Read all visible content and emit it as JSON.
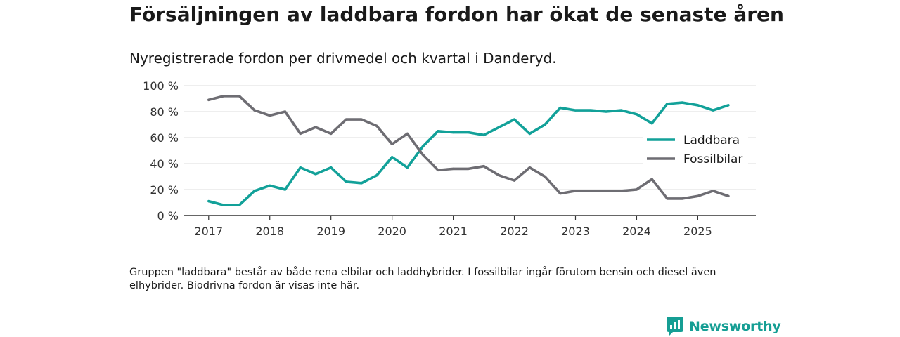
{
  "title": "Försäljningen av laddbara fordon har ökat de senaste åren",
  "subtitle": "Nyregistrerade fordon per drivmedel och kvartal i Danderyd.",
  "note": "Gruppen \"laddbara\" består av både rena elbilar och laddhybrider. I fossilbilar ingår förutom bensin och diesel även elhybrider. Biodrivna fordon är visas inte här.",
  "brand": {
    "name": "Newsworthy",
    "icon": "newsworthy-logo-icon"
  },
  "colors": {
    "laddbara": "#12a199",
    "fossil": "#6e6d73",
    "grid": "#dddddd",
    "axis": "#333333",
    "brand": "#159e94"
  },
  "chart_data": {
    "type": "line",
    "title": "Försäljningen av laddbara fordon har ökat de senaste åren",
    "xlabel": "",
    "ylabel": "",
    "ylim": [
      0,
      100
    ],
    "yticks": [
      0,
      20,
      40,
      60,
      80,
      100
    ],
    "ytick_labels": [
      "0 %",
      "20 %",
      "40 %",
      "60 %",
      "80 %",
      "100 %"
    ],
    "xlim": [
      2016.6,
      2025.95
    ],
    "xticks": [
      2017,
      2018,
      2019,
      2020,
      2021,
      2022,
      2023,
      2024,
      2025
    ],
    "xtick_labels": [
      "2017",
      "2018",
      "2019",
      "2020",
      "2021",
      "2022",
      "2023",
      "2024",
      "2025"
    ],
    "x": [
      2017.0,
      2017.25,
      2017.5,
      2017.75,
      2018.0,
      2018.25,
      2018.5,
      2018.75,
      2019.0,
      2019.25,
      2019.5,
      2019.75,
      2020.0,
      2020.25,
      2020.5,
      2020.75,
      2021.0,
      2021.25,
      2021.5,
      2021.75,
      2022.0,
      2022.25,
      2022.5,
      2022.75,
      2023.0,
      2023.25,
      2023.5,
      2023.75,
      2024.0,
      2024.25,
      2024.5,
      2024.75,
      2025.0,
      2025.25,
      2025.5
    ],
    "legend_position": "right",
    "series": [
      {
        "name": "Laddbara",
        "color": "#12a199",
        "values": [
          11,
          8,
          8,
          19,
          23,
          20,
          37,
          32,
          37,
          26,
          25,
          31,
          45,
          37,
          53,
          65,
          64,
          64,
          62,
          68,
          74,
          63,
          70,
          83,
          81,
          81,
          80,
          81,
          78,
          71,
          86,
          87,
          85,
          81,
          85
        ]
      },
      {
        "name": "Fossilbilar",
        "color": "#6e6d73",
        "values": [
          89,
          92,
          92,
          81,
          77,
          80,
          63,
          68,
          63,
          74,
          74,
          69,
          55,
          63,
          47,
          35,
          36,
          36,
          38,
          31,
          27,
          37,
          30,
          17,
          19,
          19,
          19,
          19,
          20,
          28,
          13,
          13,
          15,
          19,
          15
        ]
      }
    ]
  }
}
